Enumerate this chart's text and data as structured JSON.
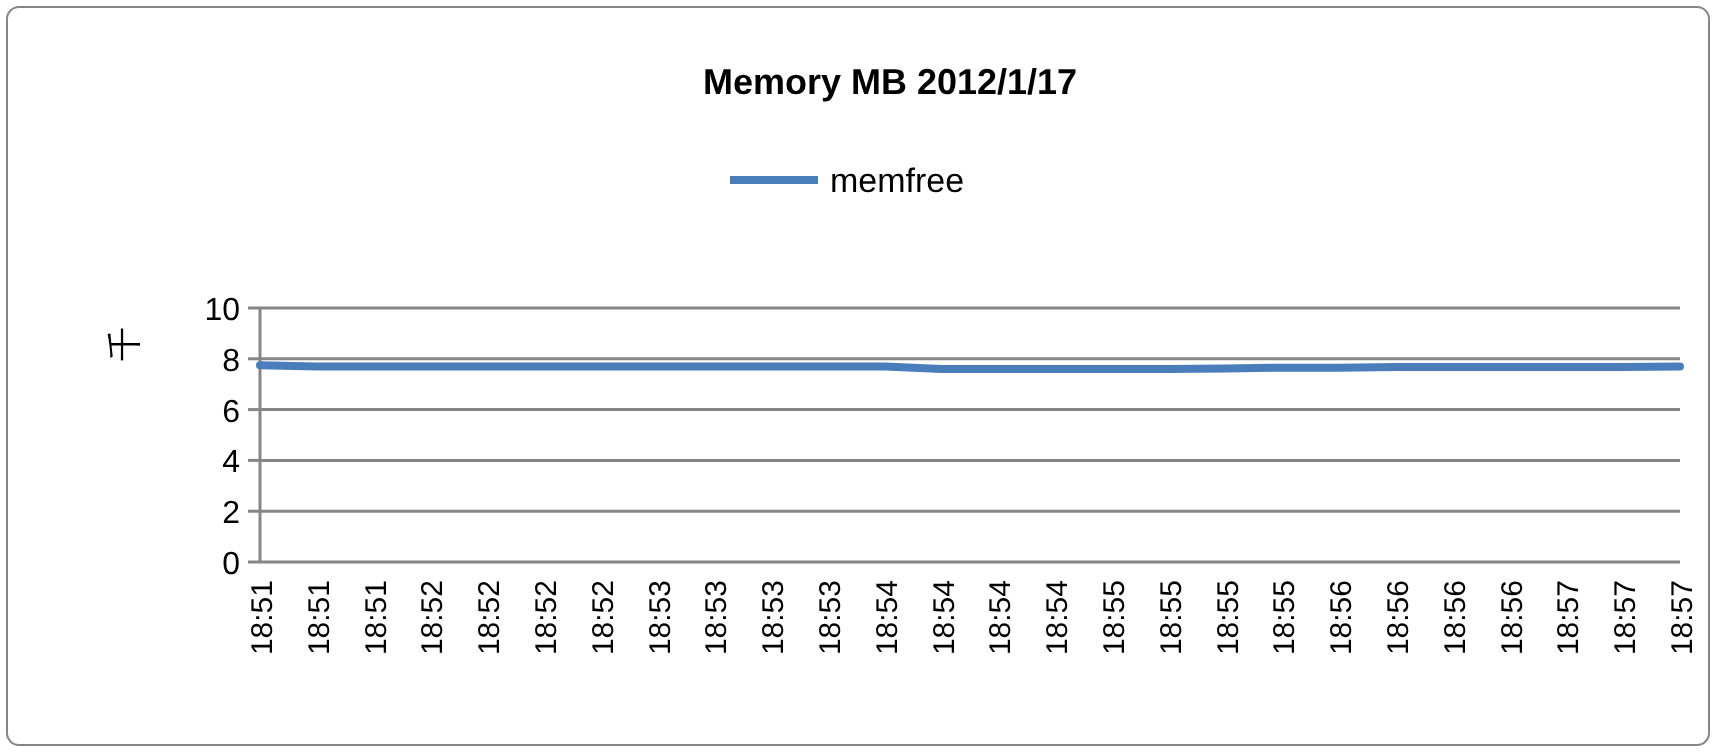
{
  "chart_data": {
    "type": "line",
    "title": "Memory MB 2012/1/17",
    "ylabel": "千",
    "categories": [
      "18:51",
      "18:51",
      "18:51",
      "18:52",
      "18:52",
      "18:52",
      "18:52",
      "18:53",
      "18:53",
      "18:53",
      "18:53",
      "18:54",
      "18:54",
      "18:54",
      "18:54",
      "18:55",
      "18:55",
      "18:55",
      "18:55",
      "18:56",
      "18:56",
      "18:56",
      "18:56",
      "18:57",
      "18:57",
      "18:57"
    ],
    "series": [
      {
        "name": "memfree",
        "color": "#4a7ebb",
        "values": [
          7.75,
          7.7,
          7.7,
          7.7,
          7.7,
          7.7,
          7.7,
          7.7,
          7.7,
          7.7,
          7.7,
          7.7,
          7.6,
          7.6,
          7.6,
          7.6,
          7.6,
          7.62,
          7.65,
          7.65,
          7.68,
          7.68,
          7.68,
          7.68,
          7.68,
          7.7
        ]
      }
    ],
    "ylim": [
      0,
      10
    ],
    "yticks": [
      0,
      2,
      4,
      6,
      8,
      10
    ],
    "grid": "y",
    "legend": "top"
  }
}
